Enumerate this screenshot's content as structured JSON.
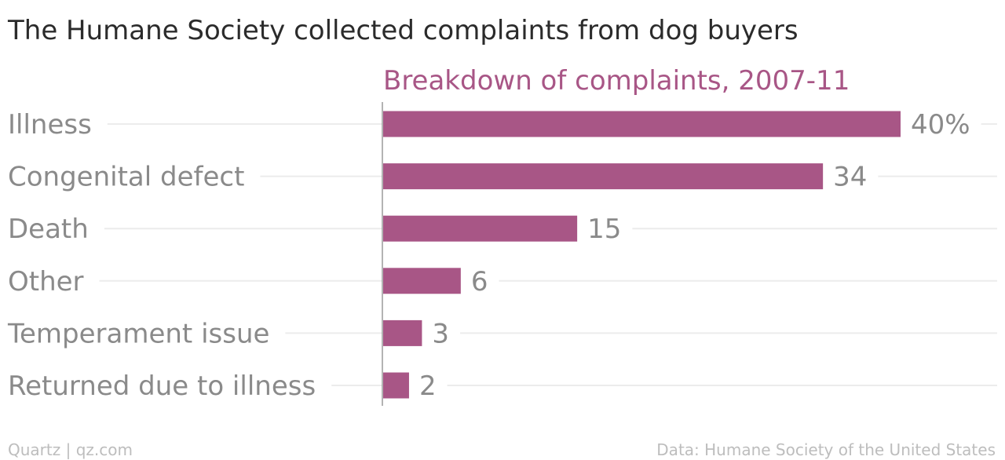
{
  "chart_data": {
    "type": "bar",
    "orientation": "horizontal",
    "title": "The Humane Society collected complaints from dog buyers",
    "subtitle": "Breakdown of complaints, 2007-11",
    "categories": [
      "Illness",
      "Congenital defect",
      "Death",
      "Other",
      "Temperament issue",
      "Returned due to illness"
    ],
    "values": [
      40,
      34,
      15,
      6,
      3,
      2
    ],
    "value_labels": [
      "40%",
      "34",
      "15",
      "6",
      "3",
      "2"
    ],
    "xlim": [
      0,
      40
    ],
    "grid": true,
    "legend": "none",
    "bar_color": "#a85686",
    "subtitle_color": "#a85686"
  },
  "footer": {
    "left": "Quartz | qz.com",
    "right": "Data: Humane Society of the United States"
  }
}
